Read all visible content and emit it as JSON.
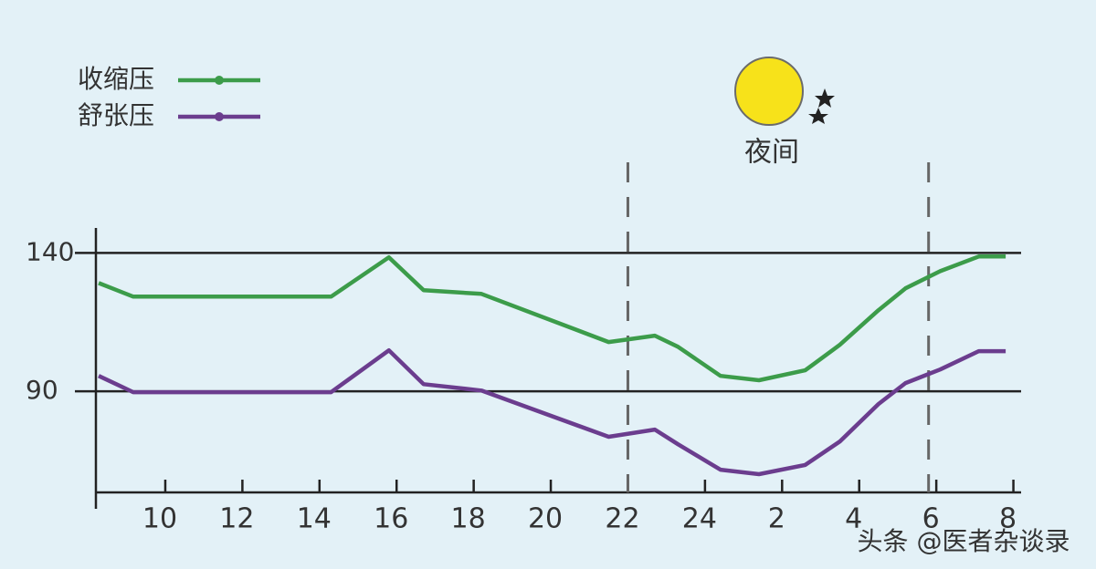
{
  "chart_data": {
    "type": "line",
    "x": [
      8.27,
      9.17,
      14.3,
      15.8,
      16.7,
      18.2,
      21.5,
      22.7,
      23.3,
      24.4,
      25.4,
      26.6,
      27.5,
      28.5,
      29.2,
      30.1,
      31.1,
      31.8
    ],
    "series": [
      {
        "name": "收缩压",
        "color": "#3c9c4a",
        "values": [
          129.1,
          124.2,
          124.2,
          138.4,
          126.5,
          125.2,
          107.8,
          110.1,
          106.1,
          95.6,
          94,
          97.6,
          106.8,
          119.3,
          127.2,
          133.4,
          138.7,
          138.7
        ]
      },
      {
        "name": "舒张压",
        "color": "#6b3d8e",
        "values": [
          95.6,
          89.7,
          89.7,
          104.8,
          92.6,
          90.3,
          73.6,
          76.2,
          70.9,
          61.7,
          60.1,
          63.4,
          71.9,
          85.4,
          93,
          97.9,
          104.5,
          104.5
        ]
      }
    ],
    "xlim": [
      8.2,
      32.2
    ],
    "xticks": [
      10,
      12,
      14,
      16,
      18,
      20,
      22,
      24,
      {
        "value": 26,
        "label": "2"
      },
      {
        "value": 28,
        "label": "4"
      },
      {
        "value": 30,
        "label": "6"
      },
      {
        "value": 32,
        "label": "8"
      }
    ],
    "ylim": [
      53.5,
      149
    ],
    "yticks": [
      90,
      140
    ],
    "night_span": [
      22,
      29.8
    ],
    "annotation": "夜间",
    "watermark": "头条 @医者杂谈录",
    "legend": "top-left",
    "grid": true
  }
}
